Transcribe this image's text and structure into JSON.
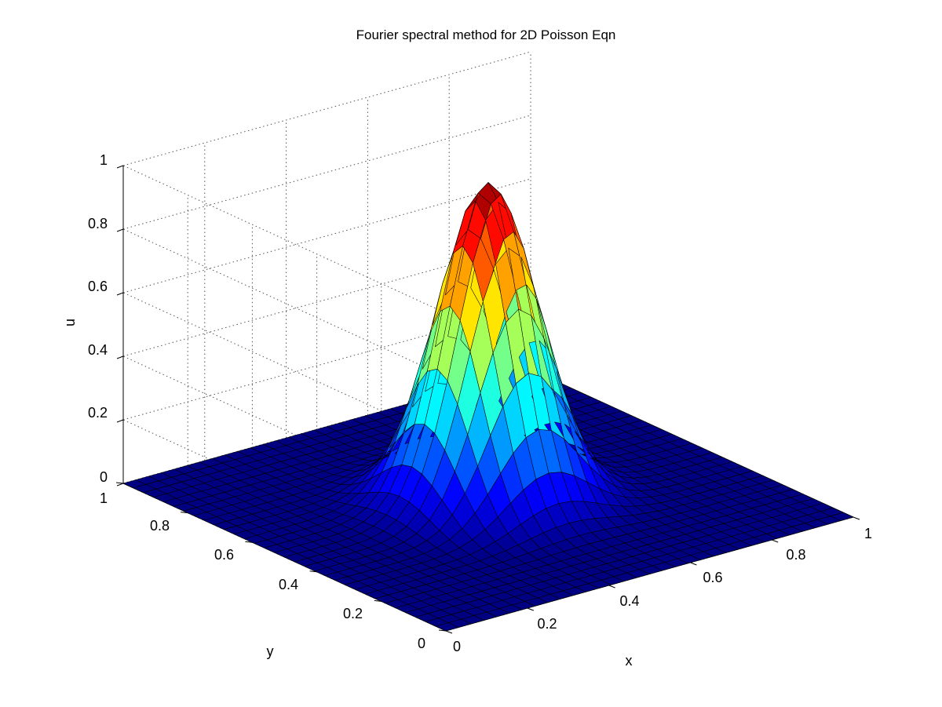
{
  "chart_data": {
    "type": "surface",
    "title": "Fourier spectral method for 2D Poisson Eqn",
    "xlabel": "x",
    "ylabel": "y",
    "zlabel": "u",
    "xlim": [
      0,
      1
    ],
    "ylim": [
      0,
      1
    ],
    "zlim": [
      0,
      1
    ],
    "x_ticks": [
      "0",
      "0.2",
      "0.4",
      "0.6",
      "0.8",
      "1"
    ],
    "y_ticks": [
      "0",
      "0.2",
      "0.4",
      "0.6",
      "0.8",
      "1"
    ],
    "z_ticks": [
      "0",
      "0.2",
      "0.4",
      "0.6",
      "0.8",
      "1"
    ],
    "grid": true,
    "colormap": "jet",
    "surface": {
      "function": "u(x,y) = exp(-50((x-0.5)^2 + (y-0.5)^2))",
      "center": [
        0.5,
        0.5
      ],
      "peak": 1.0,
      "decay": 50,
      "grid_points": 33
    }
  }
}
